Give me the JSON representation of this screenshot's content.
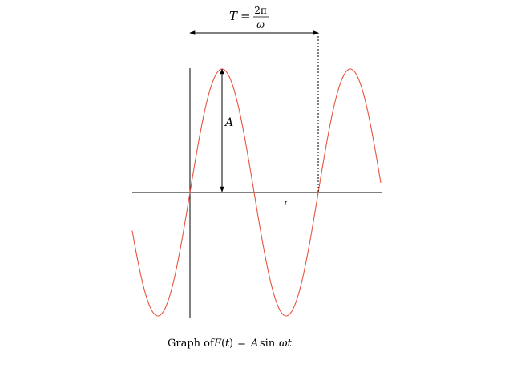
{
  "formula": {
    "lhs": "T",
    "equals": "=",
    "numerator": "2π",
    "denominator": "ω"
  },
  "labels": {
    "amplitude": "A",
    "time_axis": "t"
  },
  "caption": {
    "prefix": "Graph of",
    "function": "F",
    "paren_open": "(",
    "arg": "t",
    "paren_close": ")",
    "eq": "=",
    "amp": "A",
    "sin": "sin",
    "omega_t": "ωt"
  },
  "colors": {
    "curve": "#e8543f",
    "axes": "#000000",
    "background": "#ffffff"
  }
}
